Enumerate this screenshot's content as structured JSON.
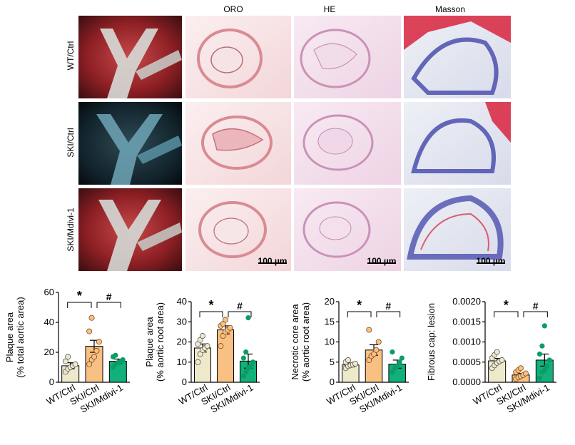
{
  "figure": {
    "column_headers": [
      "ORO",
      "HE",
      "Masson"
    ],
    "row_labels": [
      "WT/Ctrl",
      "SKI/Ctrl",
      "SKI/Mdivi-1"
    ],
    "scale_bar_label": "100 µm"
  },
  "colors": {
    "wt": "#efe9cc",
    "ski_ctrl": "#f8c083",
    "ski_mdivi": "#12b07a",
    "ski_mdivi_points": "#0b9d66",
    "oro_stain": "#d97b85",
    "he_stain": "#d38fb8",
    "masson_blue": "#4b4fae",
    "masson_red": "#d8243d"
  },
  "chart_data": [
    {
      "type": "bar",
      "ylabel": [
        "Plaque area",
        "(% total aortic area)"
      ],
      "ylim": [
        0,
        60
      ],
      "yticks": [
        0,
        20,
        40,
        60
      ],
      "ytick_labels": [
        "0",
        "20",
        "40",
        "60"
      ],
      "categories": [
        "WT/Ctrl",
        "SKI/Ctrl",
        "SKI/Mdivi-1"
      ],
      "values": [
        11,
        24,
        14
      ],
      "sem": [
        2,
        4,
        1.5
      ],
      "points": [
        [
          7,
          9,
          10,
          11,
          12,
          14,
          17
        ],
        [
          12,
          15,
          17,
          21,
          27,
          34,
          43
        ],
        [
          10,
          12,
          13,
          14,
          15,
          17,
          18
        ]
      ],
      "significance": [
        {
          "from": 0,
          "to": 1,
          "symbol": "*"
        },
        {
          "from": 1,
          "to": 2,
          "symbol": "#"
        }
      ]
    },
    {
      "type": "bar",
      "ylabel": [
        "Plaque area",
        "(% aortic root area)"
      ],
      "ylim": [
        0,
        40
      ],
      "yticks": [
        0,
        10,
        20,
        30,
        40
      ],
      "ytick_labels": [
        "0",
        "10",
        "20",
        "30",
        "40"
      ],
      "categories": [
        "WT/Ctrl",
        "SKI/Ctrl",
        "SKI/Mdivi-1"
      ],
      "values": [
        17,
        26,
        10.5
      ],
      "sem": [
        2,
        2,
        3.5
      ],
      "points": [
        [
          10,
          14,
          16,
          17,
          18,
          19,
          21,
          23
        ],
        [
          18,
          23,
          25,
          26,
          27,
          28,
          29,
          31
        ],
        [
          3,
          5,
          7,
          8,
          10,
          12,
          15,
          32
        ]
      ],
      "significance": [
        {
          "from": 0,
          "to": 1,
          "symbol": "*"
        },
        {
          "from": 1,
          "to": 2,
          "symbol": "#"
        }
      ]
    },
    {
      "type": "bar",
      "ylabel": [
        "Necrotic core area",
        "(% aortic root area)"
      ],
      "ylim": [
        0,
        20
      ],
      "yticks": [
        0,
        5,
        10,
        15,
        20
      ],
      "ytick_labels": [
        "0",
        "5",
        "10",
        "15",
        "20"
      ],
      "categories": [
        "WT/Ctrl",
        "SKI/Ctrl",
        "SKI/Mdivi-1"
      ],
      "values": [
        4.3,
        8,
        4.5
      ],
      "sem": [
        0.5,
        1.3,
        1
      ],
      "points": [
        [
          3.5,
          4,
          4.2,
          4.4,
          4.6,
          5,
          5.5
        ],
        [
          5.5,
          6.5,
          7,
          8,
          10,
          13
        ],
        [
          2.5,
          3.5,
          4,
          5,
          6,
          7.5
        ]
      ],
      "significance": [
        {
          "from": 0,
          "to": 1,
          "symbol": "*"
        },
        {
          "from": 1,
          "to": 2,
          "symbol": "#"
        }
      ]
    },
    {
      "type": "bar",
      "ylabel": [
        "Fibrous cap: lesion"
      ],
      "ylim": [
        0,
        0.002
      ],
      "yticks": [
        0,
        0.0005,
        0.001,
        0.0015,
        0.002
      ],
      "ytick_labels": [
        "0.0000",
        "0.0005",
        "0.0010",
        "0.0015",
        "0.0020"
      ],
      "categories": [
        "WT/Ctrl",
        "SKI/Ctrl",
        "SKI/Mdivi-1"
      ],
      "values": [
        0.00053,
        0.00018,
        0.00055
      ],
      "sem": [
        6e-05,
        4e-05,
        0.00015
      ],
      "points": [
        [
          0.00035,
          0.00042,
          0.00048,
          0.00052,
          0.00055,
          0.0006,
          0.00068,
          0.00075
        ],
        [
          8e-05,
          0.00012,
          0.00015,
          0.00018,
          0.00022,
          0.00025,
          0.0003,
          0.00035
        ],
        [
          0.0001,
          0.00025,
          0.0003,
          0.0004,
          0.00055,
          0.0007,
          0.0009,
          0.0014
        ]
      ],
      "significance": [
        {
          "from": 0,
          "to": 1,
          "symbol": "*"
        },
        {
          "from": 1,
          "to": 2,
          "symbol": "#"
        }
      ]
    }
  ]
}
